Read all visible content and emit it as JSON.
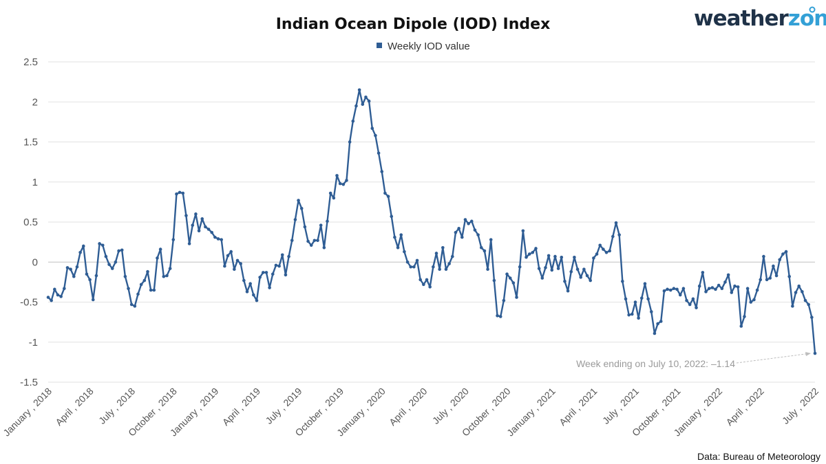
{
  "brand": {
    "logo_part1": "weather",
    "logo_part2": "zone",
    "logo_colors": [
      "#1f3248",
      "#33a0d6"
    ]
  },
  "source_note": "Data: Bureau of Meteorology",
  "chart_data": {
    "type": "line",
    "title": "Indian Ocean Dipole (IOD) Index",
    "xlabel": "",
    "ylabel": "",
    "ylim": [
      -1.5,
      2.5
    ],
    "yticks": [
      2.5,
      2,
      1.5,
      1,
      0.5,
      0,
      -0.5,
      -1,
      -1.5
    ],
    "ytick_labels": [
      "2.5",
      "2",
      "1.5",
      "1",
      "0.5",
      "0",
      "-0.5",
      "-1",
      "-1.5"
    ],
    "x_tick_labels": [
      "January , 2018",
      "April , 2018",
      "July , 2018",
      "October , 2018",
      "January , 2019",
      "April , 2019",
      "July , 2019",
      "October , 2019",
      "January , 2020",
      "April , 2020",
      "July , 2020",
      "October , 2020",
      "January , 2021",
      "April , 2021",
      "July , 2021",
      "October , 2021",
      "January , 2022",
      "April , 2022",
      "July , 2022"
    ],
    "grid": "horizontal",
    "legend_position": "top-center",
    "series": [
      {
        "name": "Weekly IOD value",
        "color": "#2f5d94",
        "frequency": "weekly",
        "values": [
          -0.44,
          -0.48,
          -0.34,
          -0.41,
          -0.43,
          -0.33,
          -0.07,
          -0.09,
          -0.18,
          -0.06,
          0.12,
          0.2,
          -0.15,
          -0.22,
          -0.47,
          -0.17,
          0.23,
          0.21,
          0.07,
          -0.03,
          -0.08,
          0.0,
          0.14,
          0.15,
          -0.18,
          -0.33,
          -0.53,
          -0.55,
          -0.4,
          -0.28,
          -0.23,
          -0.12,
          -0.35,
          -0.35,
          0.05,
          0.16,
          -0.18,
          -0.17,
          -0.08,
          0.28,
          0.85,
          0.87,
          0.86,
          0.58,
          0.23,
          0.46,
          0.6,
          0.39,
          0.54,
          0.44,
          0.41,
          0.37,
          0.31,
          0.29,
          0.28,
          -0.05,
          0.08,
          0.13,
          -0.09,
          0.02,
          -0.02,
          -0.23,
          -0.37,
          -0.27,
          -0.41,
          -0.48,
          -0.19,
          -0.13,
          -0.13,
          -0.32,
          -0.15,
          -0.04,
          -0.05,
          0.09,
          -0.16,
          0.07,
          0.27,
          0.53,
          0.77,
          0.67,
          0.44,
          0.26,
          0.21,
          0.27,
          0.27,
          0.46,
          0.18,
          0.51,
          0.86,
          0.8,
          1.08,
          0.98,
          0.97,
          1.02,
          1.5,
          1.76,
          1.95,
          2.15,
          1.97,
          2.06,
          2.01,
          1.67,
          1.58,
          1.36,
          1.13,
          0.86,
          0.82,
          0.57,
          0.31,
          0.18,
          0.34,
          0.13,
          0.0,
          -0.06,
          -0.06,
          0.02,
          -0.22,
          -0.28,
          -0.22,
          -0.31,
          -0.06,
          0.11,
          -0.09,
          0.18,
          -0.09,
          -0.02,
          0.07,
          0.37,
          0.42,
          0.31,
          0.53,
          0.48,
          0.51,
          0.4,
          0.34,
          0.18,
          0.14,
          -0.09,
          0.28,
          -0.23,
          -0.67,
          -0.68,
          -0.48,
          -0.15,
          -0.2,
          -0.26,
          -0.44,
          -0.06,
          0.39,
          0.06,
          0.1,
          0.12,
          0.17,
          -0.08,
          -0.2,
          -0.07,
          0.08,
          -0.1,
          0.07,
          -0.08,
          0.06,
          -0.24,
          -0.36,
          -0.12,
          0.06,
          -0.09,
          -0.19,
          -0.09,
          -0.17,
          -0.23,
          0.05,
          0.1,
          0.21,
          0.16,
          0.12,
          0.14,
          0.32,
          0.49,
          0.34,
          -0.24,
          -0.46,
          -0.66,
          -0.65,
          -0.5,
          -0.7,
          -0.45,
          -0.27,
          -0.46,
          -0.62,
          -0.89,
          -0.77,
          -0.74,
          -0.36,
          -0.34,
          -0.35,
          -0.33,
          -0.34,
          -0.41,
          -0.33,
          -0.48,
          -0.53,
          -0.46,
          -0.57,
          -0.3,
          -0.13,
          -0.37,
          -0.33,
          -0.32,
          -0.34,
          -0.29,
          -0.33,
          -0.25,
          -0.16,
          -0.38,
          -0.3,
          -0.31,
          -0.8,
          -0.68,
          -0.33,
          -0.5,
          -0.47,
          -0.35,
          -0.22,
          0.07,
          -0.22,
          -0.2,
          -0.05,
          -0.17,
          0.03,
          0.1,
          0.13,
          -0.18,
          -0.55,
          -0.38,
          -0.3,
          -0.37,
          -0.48,
          -0.53,
          -0.69,
          -1.14
        ]
      }
    ],
    "annotation": "Week ending on July 10, 2022: –1.14"
  }
}
